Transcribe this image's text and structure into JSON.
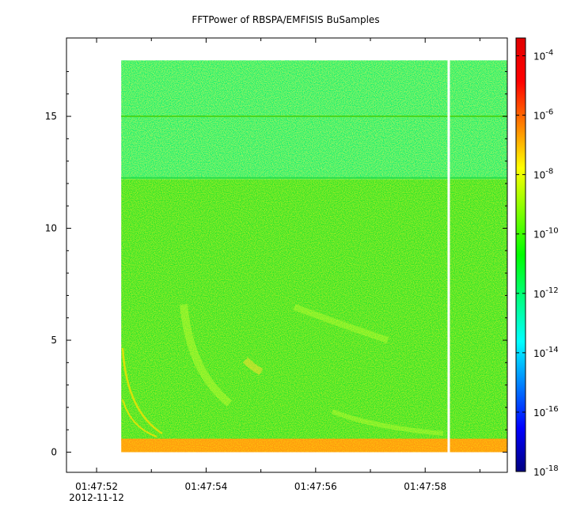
{
  "chart_data": {
    "type": "heatmap",
    "title": "FFTPower of RBSPA/EMFISIS  BuSamples",
    "xlabel": "",
    "ylabel": "",
    "x_ticks": [
      {
        "t": 0,
        "label": "01:47:52",
        "sublabel": "2012-11-12"
      },
      {
        "t": 2,
        "label": "01:47:54",
        "sublabel": ""
      },
      {
        "t": 4,
        "label": "01:47:56",
        "sublabel": ""
      },
      {
        "t": 6,
        "label": "01:47:58",
        "sublabel": ""
      }
    ],
    "x_minor_ticks": [
      1,
      3,
      5,
      7
    ],
    "xlim": [
      -0.55,
      7.5
    ],
    "y_ticks": [
      0,
      5,
      10,
      15
    ],
    "ylim": [
      -0.9,
      18.5
    ],
    "data_extent": {
      "t_start": 0.45,
      "t_end": 7.5,
      "f_min": 0.0,
      "f_max": 17.5
    },
    "gap": {
      "t": 6.43
    },
    "colorbar": {
      "scale": "log",
      "range_exponent": [
        -18,
        -3.4
      ],
      "tick_exponents": [
        -18,
        -16,
        -14,
        -12,
        -10,
        -8,
        -6,
        -4
      ],
      "colors": [
        "#00007f",
        "#0000ff",
        "#0080ff",
        "#00ffff",
        "#00ff80",
        "#00ff00",
        "#80ff00",
        "#ffff00",
        "#ff8000",
        "#ff0000",
        "#e00000"
      ]
    },
    "bands": [
      {
        "f_min": 12.2,
        "f_max": 17.5,
        "color": "#1cf070",
        "note": "upper band"
      },
      {
        "f_min": 0.5,
        "f_max": 12.2,
        "color": "#33e52c",
        "note": "main band"
      },
      {
        "f_min": 0.0,
        "f_max": 0.6,
        "color": "#ff9a10",
        "note": "low-frequency"
      }
    ],
    "lines": [
      {
        "f": 15.0,
        "color": "#49d81f"
      },
      {
        "f": 12.25,
        "color": "#2ee04a"
      }
    ]
  }
}
